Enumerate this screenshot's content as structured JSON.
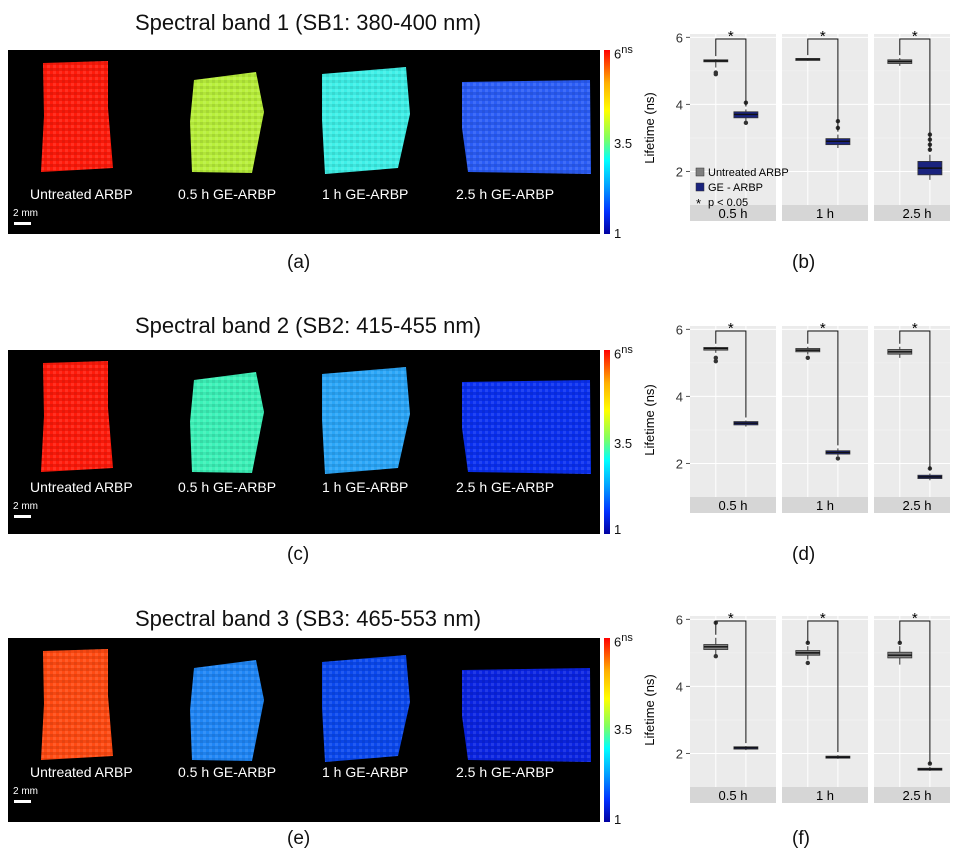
{
  "figure": {
    "rows": [
      {
        "title": "Spectral band 1 (SB1: 380-400 nm)",
        "image_letter": "(a)",
        "chart_letter": "(b)"
      },
      {
        "title": "Spectral band 2 (SB2: 415-455 nm)",
        "image_letter": "(c)",
        "chart_letter": "(d)"
      },
      {
        "title": "Spectral band 3 (SB3: 465-553 nm)",
        "image_letter": "(e)",
        "chart_letter": "(f)"
      }
    ],
    "sample_labels": [
      "Untreated ARBP",
      "0.5 h  GE-ARBP",
      "1 h GE-ARBP",
      "2.5 h GE-ARBP"
    ],
    "scale_bar_label": "2 mm",
    "colorbar": {
      "min": 1,
      "mid": 3.5,
      "max": 6,
      "unit": "ns",
      "top_label": "6",
      "mid_label": "3.5",
      "bottom_label": "1",
      "colors": [
        "#ff0000",
        "#ffff00",
        "#00ffff",
        "#0000a0"
      ]
    },
    "sample_colors": [
      [
        "#ff1a0a",
        "#b8ef3a",
        "#3ef0e8",
        "#2a5cf6"
      ],
      [
        "#ff1a0a",
        "#3cf2b8",
        "#2aa6f8",
        "#0a30f0"
      ],
      [
        "#ff4a12",
        "#1f86f6",
        "#0a48ee",
        "#0a24e2"
      ]
    ]
  },
  "chart_data": [
    {
      "type": "box",
      "panel": "(b)",
      "ylabel": "Lifetime (ns)",
      "ylim": [
        1,
        6.1
      ],
      "yticks": [
        "2",
        "4",
        "6"
      ],
      "facets": [
        "0.5 h",
        "1 h",
        "2.5 h"
      ],
      "significance": "*",
      "grid": true,
      "legend": {
        "untreated": "Untreated ARBP",
        "treated": "GE - ARBP",
        "pvalue_symbol": "*",
        "pvalue": "p < 0.05"
      },
      "series": [
        {
          "group": "Untreated ARBP",
          "color": "#7f7f7f",
          "boxes": [
            {
              "q1": 5.27,
              "median": 5.3,
              "q3": 5.33,
              "wlo": 5.1,
              "whi": 5.35,
              "outliers": [
                4.95,
                4.9
              ]
            },
            {
              "q1": 5.32,
              "median": 5.35,
              "q3": 5.37,
              "wlo": 5.3,
              "whi": 5.38,
              "outliers": []
            },
            {
              "q1": 5.22,
              "median": 5.28,
              "q3": 5.33,
              "wlo": 5.15,
              "whi": 5.38,
              "outliers": []
            }
          ]
        },
        {
          "group": "GE - ARBP",
          "color": "#1a237e",
          "boxes": [
            {
              "q1": 3.6,
              "median": 3.7,
              "q3": 3.78,
              "wlo": 3.5,
              "whi": 3.85,
              "outliers": [
                4.05,
                3.45
              ]
            },
            {
              "q1": 2.8,
              "median": 2.9,
              "q3": 2.98,
              "wlo": 2.7,
              "whi": 3.1,
              "outliers": [
                3.5,
                3.3
              ]
            },
            {
              "q1": 1.9,
              "median": 2.1,
              "q3": 2.3,
              "wlo": 1.75,
              "whi": 2.5,
              "outliers": [
                3.1,
                2.95,
                2.8,
                2.65
              ]
            }
          ]
        }
      ]
    },
    {
      "type": "box",
      "panel": "(d)",
      "ylabel": "Lifetime (ns)",
      "ylim": [
        1,
        6.1
      ],
      "yticks": [
        "2",
        "4",
        "6"
      ],
      "facets": [
        "0.5 h",
        "1 h",
        "2.5 h"
      ],
      "significance": "*",
      "grid": true,
      "series": [
        {
          "group": "Untreated ARBP",
          "color": "#7f7f7f",
          "boxes": [
            {
              "q1": 5.38,
              "median": 5.43,
              "q3": 5.46,
              "wlo": 5.3,
              "whi": 5.48,
              "outliers": [
                5.15,
                5.05
              ]
            },
            {
              "q1": 5.33,
              "median": 5.38,
              "q3": 5.43,
              "wlo": 5.25,
              "whi": 5.48,
              "outliers": [
                5.15
              ]
            },
            {
              "q1": 5.26,
              "median": 5.33,
              "q3": 5.4,
              "wlo": 5.15,
              "whi": 5.48,
              "outliers": []
            }
          ]
        },
        {
          "group": "GE - ARBP",
          "color": "#1a237e",
          "boxes": [
            {
              "q1": 3.15,
              "median": 3.2,
              "q3": 3.25,
              "wlo": 3.1,
              "whi": 3.28,
              "outliers": []
            },
            {
              "q1": 2.28,
              "median": 2.33,
              "q3": 2.38,
              "wlo": 2.22,
              "whi": 2.45,
              "outliers": [
                2.15
              ]
            },
            {
              "q1": 1.55,
              "median": 1.6,
              "q3": 1.65,
              "wlo": 1.5,
              "whi": 1.7,
              "outliers": [
                1.85
              ]
            }
          ]
        }
      ]
    },
    {
      "type": "box",
      "panel": "(f)",
      "ylabel": "Lifetime (ns)",
      "ylim": [
        1,
        6.1
      ],
      "yticks": [
        "2",
        "4",
        "6"
      ],
      "facets": [
        "0.5 h",
        "1 h",
        "2.5 h"
      ],
      "significance": "*",
      "grid": true,
      "series": [
        {
          "group": "Untreated ARBP",
          "color": "#7f7f7f",
          "boxes": [
            {
              "q1": 5.1,
              "median": 5.18,
              "q3": 5.25,
              "wlo": 4.95,
              "whi": 5.45,
              "outliers": [
                5.9,
                4.9
              ]
            },
            {
              "q1": 4.93,
              "median": 5.0,
              "q3": 5.07,
              "wlo": 4.8,
              "whi": 5.2,
              "outliers": [
                5.3,
                4.7
              ]
            },
            {
              "q1": 4.85,
              "median": 4.93,
              "q3": 5.02,
              "wlo": 4.65,
              "whi": 5.2,
              "outliers": [
                5.3
              ]
            }
          ]
        },
        {
          "group": "GE - ARBP",
          "color": "#1a237e",
          "boxes": [
            {
              "q1": 2.13,
              "median": 2.17,
              "q3": 2.2,
              "wlo": 2.1,
              "whi": 2.22,
              "outliers": []
            },
            {
              "q1": 1.86,
              "median": 1.89,
              "q3": 1.92,
              "wlo": 1.84,
              "whi": 1.95,
              "outliers": []
            },
            {
              "q1": 1.5,
              "median": 1.53,
              "q3": 1.56,
              "wlo": 1.48,
              "whi": 1.6,
              "outliers": [
                1.7
              ]
            }
          ]
        }
      ]
    }
  ]
}
